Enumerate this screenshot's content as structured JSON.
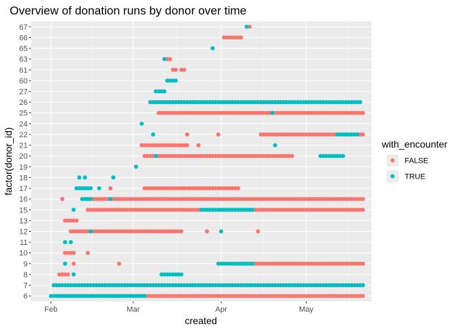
{
  "chart_data": {
    "type": "scatter",
    "title": "Overview of donation runs by donor over time",
    "xlabel": "created",
    "ylabel": "factor(donor_id)",
    "x_ticks": [
      "Feb",
      "Mar",
      "Apr",
      "May"
    ],
    "x_tick_dates": [
      "2020-02-01",
      "2020-03-01",
      "2020-04-01",
      "2020-05-01"
    ],
    "xlim": [
      "2020-01-25",
      "2020-05-24"
    ],
    "y_categories": [
      "6",
      "7",
      "8",
      "9",
      "10",
      "11",
      "12",
      "13",
      "15",
      "16",
      "17",
      "18",
      "19",
      "20",
      "21",
      "22",
      "24",
      "25",
      "26",
      "27",
      "60",
      "61",
      "63",
      "65",
      "66",
      "67"
    ],
    "grid": true,
    "legend": {
      "title": "with_encounter",
      "position": "right",
      "entries": [
        {
          "label": "FALSE",
          "color": "#F8766D"
        },
        {
          "label": "TRUE",
          "color": "#00BFC4"
        }
      ]
    },
    "series": [
      {
        "name": "FALSE",
        "color": "#F8766D",
        "runs": [
          {
            "donor": "6",
            "from": "2020-02-03",
            "to": "2020-05-21"
          },
          {
            "donor": "7",
            "from": "2020-02-11",
            "to": "2020-05-21"
          },
          {
            "donor": "8",
            "from": "2020-02-04",
            "to": "2020-02-07"
          },
          {
            "donor": "9",
            "from": "2020-04-10",
            "to": "2020-05-21"
          },
          {
            "donor": "10",
            "from": "2020-02-06",
            "to": "2020-02-09"
          },
          {
            "donor": "12",
            "from": "2020-02-08",
            "to": "2020-03-18"
          },
          {
            "donor": "13",
            "from": "2020-02-06",
            "to": "2020-02-10"
          },
          {
            "donor": "15",
            "from": "2020-02-14",
            "to": "2020-05-21"
          },
          {
            "donor": "16",
            "from": "2020-02-13",
            "to": "2020-05-21"
          },
          {
            "donor": "17",
            "from": "2020-03-05",
            "to": "2020-04-07"
          },
          {
            "donor": "20",
            "from": "2020-03-05",
            "to": "2020-04-26"
          },
          {
            "donor": "21",
            "from": "2020-03-04",
            "to": "2020-03-20"
          },
          {
            "donor": "22",
            "from": "2020-04-15",
            "to": "2020-05-21"
          },
          {
            "donor": "25",
            "from": "2020-03-10",
            "to": "2020-05-21"
          },
          {
            "donor": "26",
            "from": "2020-03-07",
            "to": "2020-04-24"
          },
          {
            "donor": "61",
            "from": "2020-03-15",
            "to": "2020-03-16"
          },
          {
            "donor": "63",
            "from": "2020-03-13",
            "to": "2020-03-14"
          },
          {
            "donor": "66",
            "from": "2020-04-02",
            "to": "2020-04-08"
          },
          {
            "donor": "67",
            "from": "2020-04-11",
            "to": "2020-04-11"
          }
        ],
        "points": [
          {
            "donor": "7",
            "date": "2020-02-07"
          },
          {
            "donor": "9",
            "date": "2020-02-09"
          },
          {
            "donor": "9",
            "date": "2020-02-25"
          },
          {
            "donor": "10",
            "date": "2020-02-14"
          },
          {
            "donor": "12",
            "date": "2020-03-27"
          },
          {
            "donor": "12",
            "date": "2020-04-14"
          },
          {
            "donor": "16",
            "date": "2020-02-05"
          },
          {
            "donor": "17",
            "date": "2020-02-22"
          },
          {
            "donor": "21",
            "date": "2020-03-24"
          },
          {
            "donor": "22",
            "date": "2020-03-20"
          },
          {
            "donor": "22",
            "date": "2020-03-31"
          },
          {
            "donor": "22",
            "date": "2020-04-18"
          },
          {
            "donor": "22",
            "date": "2020-04-23"
          },
          {
            "donor": "61",
            "date": "2020-03-18"
          },
          {
            "donor": "61",
            "date": "2020-03-19"
          }
        ]
      },
      {
        "name": "TRUE",
        "color": "#00BFC4",
        "runs": [
          {
            "donor": "6",
            "from": "2020-02-01",
            "to": "2020-03-05"
          },
          {
            "donor": "7",
            "from": "2020-02-02",
            "to": "2020-05-21"
          },
          {
            "donor": "8",
            "from": "2020-03-11",
            "to": "2020-03-18"
          },
          {
            "donor": "9",
            "from": "2020-03-31",
            "to": "2020-04-12"
          },
          {
            "donor": "15",
            "from": "2020-03-25",
            "to": "2020-04-12"
          },
          {
            "donor": "16",
            "from": "2020-02-12",
            "to": "2020-02-15"
          },
          {
            "donor": "17",
            "from": "2020-02-10",
            "to": "2020-02-15"
          },
          {
            "donor": "20",
            "from": "2020-05-06",
            "to": "2020-05-14"
          },
          {
            "donor": "22",
            "from": "2020-05-12",
            "to": "2020-05-19"
          },
          {
            "donor": "26",
            "from": "2020-03-07",
            "to": "2020-05-20"
          },
          {
            "donor": "27",
            "from": "2020-03-09",
            "to": "2020-03-12"
          },
          {
            "donor": "60",
            "from": "2020-03-13",
            "to": "2020-03-16"
          }
        ],
        "points": [
          {
            "donor": "8",
            "date": "2020-02-09"
          },
          {
            "donor": "9",
            "date": "2020-02-06"
          },
          {
            "donor": "11",
            "date": "2020-02-06"
          },
          {
            "donor": "11",
            "date": "2020-02-08"
          },
          {
            "donor": "12",
            "date": "2020-02-15"
          },
          {
            "donor": "12",
            "date": "2020-04-01"
          },
          {
            "donor": "15",
            "date": "2020-02-09"
          },
          {
            "donor": "16",
            "date": "2020-02-22"
          },
          {
            "donor": "17",
            "date": "2020-02-18"
          },
          {
            "donor": "18",
            "date": "2020-02-11"
          },
          {
            "donor": "18",
            "date": "2020-02-13"
          },
          {
            "donor": "18",
            "date": "2020-02-23"
          },
          {
            "donor": "19",
            "date": "2020-03-02"
          },
          {
            "donor": "20",
            "date": "2020-03-09"
          },
          {
            "donor": "21",
            "date": "2020-04-20"
          },
          {
            "donor": "22",
            "date": "2020-03-08"
          },
          {
            "donor": "24",
            "date": "2020-03-04"
          },
          {
            "donor": "25",
            "date": "2020-04-19"
          },
          {
            "donor": "63",
            "date": "2020-03-12"
          },
          {
            "donor": "65",
            "date": "2020-03-29"
          },
          {
            "donor": "67",
            "date": "2020-04-10"
          }
        ]
      }
    ]
  }
}
